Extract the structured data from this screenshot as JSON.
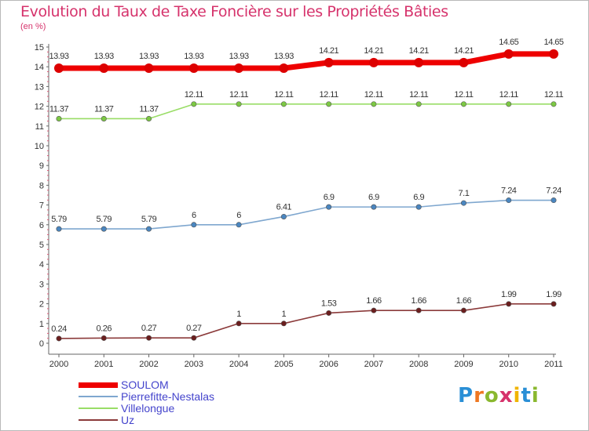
{
  "title": "Evolution du Taux de Taxe Foncière sur les Propriétés Bâties",
  "unit": "(en %)",
  "brand": "Proxiti",
  "chart_data": {
    "type": "line",
    "title": "Evolution du Taux de Taxe Foncière sur les Propriétés Bâties",
    "ylabel": "(en %)",
    "xlabel": "",
    "ylim": [
      0,
      15
    ],
    "yticks": [
      "0",
      "1",
      "2",
      "3",
      "4",
      "5",
      "6",
      "7",
      "8",
      "9",
      "10",
      "11",
      "12",
      "13",
      "14",
      "15"
    ],
    "categories": [
      "2000",
      "2001",
      "2002",
      "2003",
      "2004",
      "2005",
      "2006",
      "2007",
      "2008",
      "2009",
      "2010",
      "2011"
    ],
    "series": [
      {
        "name": "SOULOM",
        "color": "#ee0000",
        "marker_color": "#dd0000",
        "emphasis": "thick",
        "values": [
          13.93,
          13.93,
          13.93,
          13.93,
          13.93,
          13.93,
          14.21,
          14.21,
          14.21,
          14.21,
          14.65,
          14.65
        ],
        "labels": [
          "13.93",
          "13.93",
          "13.93",
          "13.93",
          "13.93",
          "13.93",
          "14.21",
          "14.21",
          "14.21",
          "14.21",
          "14.65",
          "14.65"
        ]
      },
      {
        "name": "Pierrefitte-Nestalas",
        "color": "#7fa7cf",
        "marker_color": "#4a86c0",
        "emphasis": "normal",
        "values": [
          5.79,
          5.79,
          5.79,
          6,
          6,
          6.41,
          6.9,
          6.9,
          6.9,
          7.1,
          7.24,
          7.24
        ],
        "labels": [
          "5.79",
          "5.79",
          "5.79",
          "6",
          "6",
          "6.41",
          "6.9",
          "6.9",
          "6.9",
          "7.1",
          "7.24",
          "7.24"
        ]
      },
      {
        "name": "Villelongue",
        "color": "#99dd66",
        "marker_color": "#7cc843",
        "emphasis": "normal",
        "values": [
          11.37,
          11.37,
          11.37,
          12.11,
          12.11,
          12.11,
          12.11,
          12.11,
          12.11,
          12.11,
          12.11,
          12.11
        ],
        "labels": [
          "11.37",
          "11.37",
          "11.37",
          "12.11",
          "12.11",
          "12.11",
          "12.11",
          "12.11",
          "12.11",
          "12.11",
          "12.11",
          "12.11"
        ]
      },
      {
        "name": "Uz",
        "color": "#8b3a3a",
        "marker_color": "#6b1e1e",
        "emphasis": "normal",
        "values": [
          0.24,
          0.26,
          0.27,
          0.27,
          1,
          1,
          1.53,
          1.66,
          1.66,
          1.66,
          1.99,
          1.99
        ],
        "labels": [
          "0.24",
          "0.26",
          "0.27",
          "0.27",
          "1",
          "1",
          "1.53",
          "1.66",
          "1.66",
          "1.66",
          "1.99",
          "1.99"
        ]
      }
    ]
  }
}
